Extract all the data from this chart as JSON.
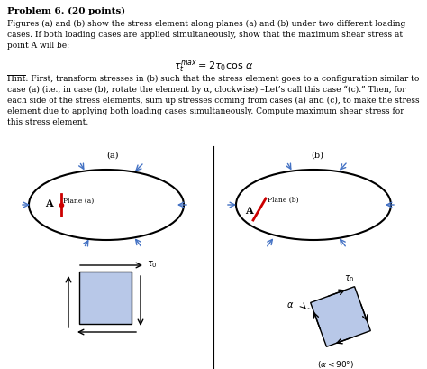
{
  "title_text": "Problem 6. (20 points)",
  "body_text": "Figures (a) and (b) show the stress element along planes (a) and (b) under two different loading\ncases. If both loading cases are applied simultaneously, show that the maximum shear stress at\npoint A will be:",
  "formula": "$\\tau_t^{max} = 2\\tau_0\\cos\\,\\alpha$",
  "hint_text": "Hint: First, transform stresses in (b) such that the stress element goes to a configuration similar to\ncase (a) (i.e., in case (b), rotate the element by α, clockwise) –Let’s call this case “(c).” Then, for\neach side of the stress elements, sum up stresses coming from cases (a) and (c), to make the stress\nelement due to applying both loading cases simultaneously. Compute maximum shear stress for\nthis stress element.",
  "label_a": "(a)",
  "label_b": "(b)",
  "bg_color": "#ffffff",
  "ellipse_color": "#000000",
  "square_fill": "#b8c8e8",
  "arrow_color": "#4472c4",
  "text_color": "#000000",
  "red_color": "#cc0000"
}
